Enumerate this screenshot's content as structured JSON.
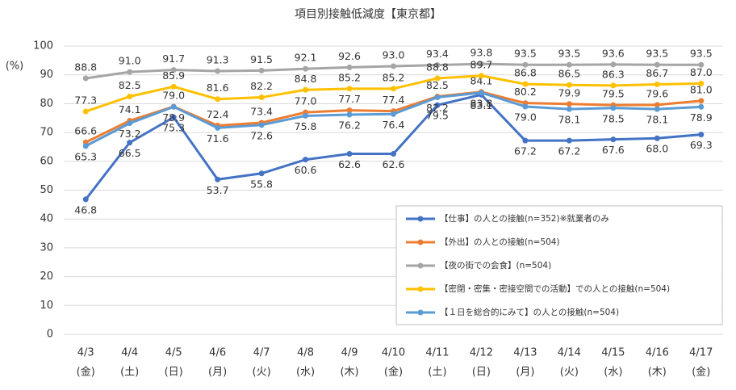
{
  "chart_data": {
    "type": "line",
    "title": "項目別接触低減度【東京都】",
    "y_label": "(%)",
    "categories": [
      "4/3",
      "4/4",
      "4/5",
      "4/6",
      "4/7",
      "4/8",
      "4/9",
      "4/10",
      "4/11",
      "4/12",
      "4/13",
      "4/14",
      "4/15",
      "4/16",
      "4/17"
    ],
    "category_sublabels": [
      "(金)",
      "(土)",
      "(日)",
      "(月)",
      "(火)",
      "(水)",
      "(木)",
      "(金)",
      "(土)",
      "(日)",
      "(月)",
      "(火)",
      "(水)",
      "(木)",
      "(金)"
    ],
    "ylim": [
      0,
      100
    ],
    "yticks": [
      0,
      10,
      20,
      30,
      40,
      50,
      60,
      70,
      80,
      90,
      100
    ],
    "grid": true,
    "legend": "lower right",
    "series": [
      {
        "name": "【仕事】の人との接触(n=352)※就業者のみ",
        "color": "#4472c4",
        "values": [
          46.8,
          66.5,
          75.3,
          53.7,
          55.8,
          60.6,
          62.6,
          62.6,
          79.5,
          83.1,
          67.2,
          67.2,
          67.6,
          68.0,
          69.3
        ],
        "value_labels": [
          "46.8",
          "66.5",
          "75.3",
          "53.7",
          "55.8",
          "60.6",
          "62.6",
          "62.6",
          "79.5",
          "83.1",
          "67.2",
          "67.2",
          "67.6",
          "68.0",
          "69.3"
        ]
      },
      {
        "name": "【外出】の人との接触(n=504)",
        "color": "#ed7d31",
        "values": [
          66.6,
          74.1,
          79.0,
          72.4,
          73.4,
          77.0,
          77.7,
          77.4,
          82.5,
          84.1,
          80.2,
          79.9,
          79.5,
          79.6,
          81.0
        ],
        "value_labels": [
          "66.6",
          "74.1",
          "79.0",
          "72.4",
          "73.4",
          "77.0",
          "77.7",
          "77.4",
          "82.5",
          "84.1",
          "80.2",
          "79.9",
          "79.5",
          "79.6",
          "81.0"
        ]
      },
      {
        "name": "【夜の街での会食】(n=504)",
        "color": "#a5a5a5",
        "values": [
          88.8,
          91.0,
          91.7,
          91.3,
          91.5,
          92.1,
          92.6,
          93.0,
          93.4,
          93.8,
          93.5,
          93.5,
          93.6,
          93.5,
          93.5
        ],
        "value_labels": [
          "88.8",
          "91.0",
          "91.7",
          "91.3",
          "91.5",
          "92.1",
          "92.6",
          "93.0",
          "93.4",
          "93.8",
          "93.5",
          "93.5",
          "93.6",
          "93.5",
          "93.5"
        ]
      },
      {
        "name": "【密閉・密集・密接空間での活動】での人との接触(n=504)",
        "color": "#ffc000",
        "values": [
          77.3,
          82.5,
          85.9,
          81.6,
          82.2,
          84.8,
          85.2,
          85.2,
          88.8,
          89.7,
          86.8,
          86.5,
          86.3,
          86.7,
          87.0
        ],
        "value_labels": [
          "77.3",
          "82.5",
          "85.9",
          "81.6",
          "82.2",
          "84.8",
          "85.2",
          "85.2",
          "88.8",
          "89.7",
          "86.8",
          "86.5",
          "86.3",
          "86.7",
          "87.0"
        ]
      },
      {
        "name": "【１日を総合的にみて】の人との接触(n=504)",
        "color": "#5b9bd5",
        "values": [
          65.3,
          73.2,
          78.9,
          71.6,
          72.6,
          75.8,
          76.2,
          76.4,
          82.2,
          83.8,
          79.0,
          78.1,
          78.5,
          78.1,
          78.9
        ],
        "value_labels": [
          "65.3",
          "73.2",
          "78.9",
          "71.6",
          "72.6",
          "75.8",
          "76.2",
          "76.4",
          "82.2",
          "83.8",
          "79.0",
          "78.1",
          "78.5",
          "78.1",
          "78.9"
        ]
      }
    ]
  }
}
